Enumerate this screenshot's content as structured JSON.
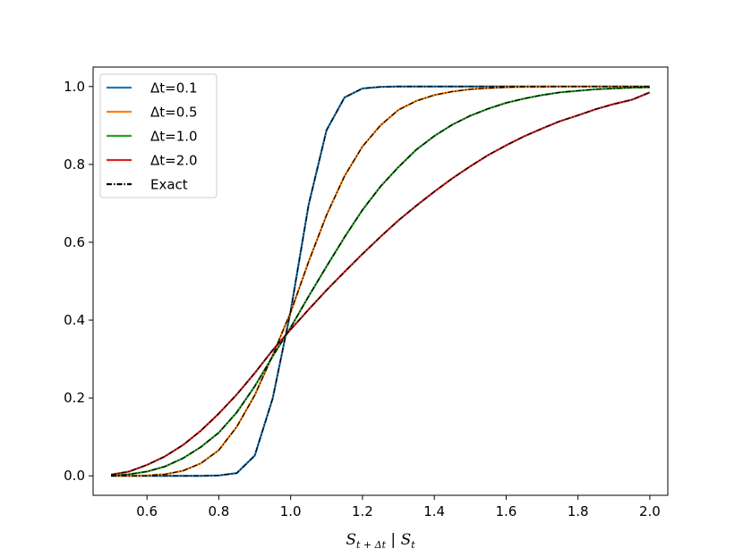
{
  "chart_data": {
    "type": "line",
    "title": "",
    "xlabel": "S_{t+Δt} | S_t",
    "xlabel_parts": {
      "main_left": "S",
      "sub_left": "t + Δt",
      "sep": " | ",
      "main_right": "S",
      "sub_right": "t"
    },
    "ylabel": "",
    "xlim": [
      0.45,
      2.05
    ],
    "ylim": [
      -0.05,
      1.05
    ],
    "xticks": [
      0.6,
      0.8,
      1.0,
      1.2,
      1.4,
      1.6,
      1.8,
      2.0
    ],
    "xtick_labels": [
      "0.6",
      "0.8",
      "1.0",
      "1.2",
      "1.4",
      "1.6",
      "1.8",
      "2.0"
    ],
    "yticks": [
      0.0,
      0.2,
      0.4,
      0.6,
      0.8,
      1.0
    ],
    "ytick_labels": [
      "0.0",
      "0.2",
      "0.4",
      "0.6",
      "0.8",
      "1.0"
    ],
    "grid": false,
    "legend_position": "top-left",
    "x": [
      0.5,
      0.55,
      0.6,
      0.65,
      0.7,
      0.75,
      0.8,
      0.85,
      0.9,
      0.95,
      1.0,
      1.05,
      1.1,
      1.15,
      1.2,
      1.25,
      1.3,
      1.35,
      1.4,
      1.45,
      1.5,
      1.55,
      1.6,
      1.65,
      1.7,
      1.75,
      1.8,
      1.85,
      1.9,
      1.95,
      2.0
    ],
    "series": [
      {
        "name": "Δt=0.1",
        "color": "#1f77b4",
        "values": [
          0.0,
          0.0,
          0.0,
          0.0,
          0.0,
          0.0,
          0.001,
          0.007,
          0.052,
          0.199,
          0.423,
          0.696,
          0.888,
          0.972,
          0.995,
          0.999,
          1.0,
          1.0,
          1.0,
          1.0,
          1.0,
          1.0,
          1.0,
          1.0,
          1.0,
          1.0,
          1.0,
          1.0,
          1.0,
          1.0,
          1.0
        ]
      },
      {
        "name": "Δt=0.5",
        "color": "#ff7f0e",
        "values": [
          0.0,
          0.0,
          0.001,
          0.004,
          0.013,
          0.032,
          0.066,
          0.126,
          0.207,
          0.31,
          0.42,
          0.55,
          0.67,
          0.77,
          0.846,
          0.9,
          0.94,
          0.963,
          0.978,
          0.987,
          0.993,
          0.996,
          0.998,
          0.999,
          0.999,
          1.0,
          1.0,
          1.0,
          1.0,
          1.0,
          1.0
        ]
      },
      {
        "name": "Δt=1.0",
        "color": "#2ca02c",
        "values": [
          0.0,
          0.004,
          0.011,
          0.024,
          0.045,
          0.074,
          0.111,
          0.163,
          0.23,
          0.307,
          0.381,
          0.461,
          0.538,
          0.613,
          0.683,
          0.743,
          0.793,
          0.838,
          0.873,
          0.902,
          0.925,
          0.943,
          0.958,
          0.969,
          0.978,
          0.985,
          0.989,
          0.993,
          0.995,
          0.997,
          0.998
        ]
      },
      {
        "name": "Δt=2.0",
        "color": "#d62728",
        "values": [
          0.003,
          0.011,
          0.028,
          0.05,
          0.079,
          0.116,
          0.16,
          0.209,
          0.264,
          0.323,
          0.376,
          0.427,
          0.477,
          0.524,
          0.57,
          0.614,
          0.656,
          0.694,
          0.73,
          0.764,
          0.795,
          0.824,
          0.849,
          0.872,
          0.892,
          0.911,
          0.926,
          0.942,
          0.955,
          0.966,
          0.985
        ]
      }
    ],
    "reference": {
      "name": "Exact",
      "color": "#000000",
      "style": "dashdot"
    }
  }
}
